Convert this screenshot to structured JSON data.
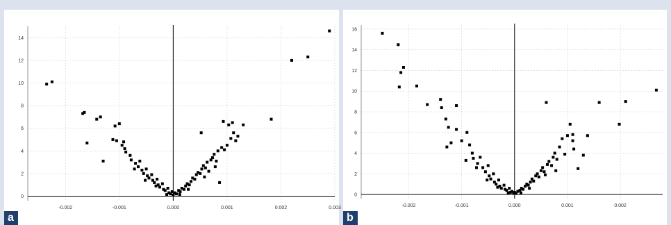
{
  "panels": [
    {
      "label": "a"
    },
    {
      "label": "b"
    }
  ],
  "colors": {
    "background": "#dce3ef",
    "panel": "#ffffff",
    "label_bg": "#1f3f6d",
    "point": "#000000"
  },
  "chart_data": [
    {
      "type": "scatter",
      "title": "",
      "xlabel": "",
      "ylabel": "",
      "xlim": [
        -0.0027,
        0.003
      ],
      "ylim": [
        -0.4,
        15
      ],
      "grid": true,
      "xticks": [
        -0.002,
        -0.001,
        0.0,
        0.001,
        0.002,
        0.003
      ],
      "xtick_labels": [
        "-0.002",
        "-0.001",
        "0.000",
        "0.001",
        "0.002",
        "0.003"
      ],
      "yticks": [
        0,
        2,
        4,
        6,
        8,
        10,
        12,
        14
      ],
      "ytick_labels": [
        "0",
        "2",
        "4",
        "6",
        "8",
        "10",
        "12",
        "14"
      ],
      "points": [
        [
          -0.00235,
          9.9
        ],
        [
          -0.00225,
          10.1
        ],
        [
          -0.00168,
          7.3
        ],
        [
          -0.00165,
          7.4
        ],
        [
          -0.00142,
          6.8
        ],
        [
          -0.00135,
          7.0
        ],
        [
          -0.0016,
          4.7
        ],
        [
          -0.0013,
          3.1
        ],
        [
          -0.00108,
          6.2
        ],
        [
          -0.001,
          6.4
        ],
        [
          -0.00112,
          5.0
        ],
        [
          -0.00105,
          4.9
        ],
        [
          -0.00095,
          4.5
        ],
        [
          -0.0009,
          4.2
        ],
        [
          -0.00088,
          3.9
        ],
        [
          -0.0008,
          3.6
        ],
        [
          -0.00078,
          3.2
        ],
        [
          -0.0007,
          2.9
        ],
        [
          -0.00065,
          2.6
        ],
        [
          -0.00062,
          3.1
        ],
        [
          -0.00058,
          2.3
        ],
        [
          -0.00055,
          2.0
        ],
        [
          -0.0005,
          2.4
        ],
        [
          -0.00048,
          1.8
        ],
        [
          -0.00045,
          1.6
        ],
        [
          -0.0004,
          1.9
        ],
        [
          -0.00038,
          1.4
        ],
        [
          -0.00035,
          1.2
        ],
        [
          -0.0003,
          1.5
        ],
        [
          -0.00028,
          1.0
        ],
        [
          -0.00025,
          0.8
        ],
        [
          -0.0002,
          1.1
        ],
        [
          -0.00018,
          0.6
        ],
        [
          -0.00015,
          0.5
        ],
        [
          -0.0001,
          0.7
        ],
        [
          -8e-05,
          0.3
        ],
        [
          -5e-05,
          0.2
        ],
        [
          -2e-05,
          0.4
        ],
        [
          0.0,
          0.1
        ],
        [
          3e-05,
          0.3
        ],
        [
          6e-05,
          0.2
        ],
        [
          0.0001,
          0.5
        ],
        [
          0.00013,
          0.4
        ],
        [
          0.00016,
          0.7
        ],
        [
          0.0002,
          0.6
        ],
        [
          0.00023,
          0.9
        ],
        [
          0.00026,
          1.1
        ],
        [
          0.0003,
          1.0
        ],
        [
          0.00033,
          1.3
        ],
        [
          0.00036,
          1.6
        ],
        [
          0.0004,
          1.5
        ],
        [
          0.00043,
          1.9
        ],
        [
          0.00046,
          2.1
        ],
        [
          0.0005,
          2.0
        ],
        [
          0.00053,
          2.4
        ],
        [
          0.00056,
          2.7
        ],
        [
          0.0006,
          2.5
        ],
        [
          0.00063,
          3.0
        ],
        [
          0.00066,
          2.2
        ],
        [
          0.0007,
          3.2
        ],
        [
          0.00073,
          3.4
        ],
        [
          0.00076,
          3.7
        ],
        [
          0.0008,
          3.1
        ],
        [
          0.00083,
          4.0
        ],
        [
          0.00086,
          1.2
        ],
        [
          0.0009,
          4.3
        ],
        [
          0.00093,
          6.6
        ],
        [
          0.00095,
          4.1
        ],
        [
          0.001,
          4.5
        ],
        [
          0.00103,
          6.3
        ],
        [
          0.00107,
          5.1
        ],
        [
          0.0011,
          6.5
        ],
        [
          0.00112,
          5.6
        ],
        [
          0.00116,
          4.9
        ],
        [
          0.0012,
          5.3
        ],
        [
          0.0013,
          6.3
        ],
        [
          0.00182,
          6.8
        ],
        [
          0.0022,
          12.0
        ],
        [
          0.0025,
          12.3
        ],
        [
          0.0029,
          14.6
        ],
        [
          0.00052,
          5.6
        ],
        [
          -0.00092,
          4.8
        ],
        [
          -0.00072,
          2.4
        ],
        [
          -0.00052,
          1.4
        ],
        [
          0.00058,
          1.7
        ],
        [
          0.00078,
          2.6
        ],
        [
          -0.00032,
          0.9
        ],
        [
          0.00028,
          0.6
        ],
        [
          -0.00012,
          0.15
        ],
        [
          0.00012,
          0.15
        ]
      ]
    },
    {
      "type": "scatter",
      "title": "",
      "xlabel": "",
      "ylabel": "",
      "xlim": [
        -0.0029,
        0.0028
      ],
      "ylim": [
        -0.4,
        16.4
      ],
      "grid": true,
      "xticks": [
        -0.002,
        -0.001,
        0.0,
        0.001,
        0.002
      ],
      "xtick_labels": [
        "-0.002",
        "-0.001",
        "0.000",
        "0.001",
        "0.002"
      ],
      "yticks": [
        0,
        2,
        4,
        6,
        8,
        10,
        12,
        14,
        16
      ],
      "ytick_labels": [
        "0",
        "2",
        "4",
        "6",
        "8",
        "10",
        "12",
        "14",
        "16"
      ],
      "points": [
        [
          -0.0025,
          15.6
        ],
        [
          -0.0022,
          14.5
        ],
        [
          -0.00215,
          11.8
        ],
        [
          -0.0021,
          12.3
        ],
        [
          -0.00218,
          10.4
        ],
        [
          -0.00185,
          10.5
        ],
        [
          -0.00165,
          8.7
        ],
        [
          -0.0014,
          9.2
        ],
        [
          -0.00138,
          8.4
        ],
        [
          -0.0011,
          8.6
        ],
        [
          -0.0013,
          7.3
        ],
        [
          -0.00125,
          6.5
        ],
        [
          -0.0012,
          5.0
        ],
        [
          -0.00128,
          4.6
        ],
        [
          -0.0011,
          6.3
        ],
        [
          -0.001,
          5.2
        ],
        [
          -0.0009,
          6.0
        ],
        [
          -0.00085,
          4.8
        ],
        [
          -0.0008,
          4.0
        ],
        [
          -0.00078,
          3.5
        ],
        [
          -0.0007,
          3.0
        ],
        [
          -0.00065,
          3.6
        ],
        [
          -0.0006,
          2.6
        ],
        [
          -0.00055,
          2.2
        ],
        [
          -0.0005,
          2.8
        ],
        [
          -0.00048,
          1.8
        ],
        [
          -0.00045,
          1.5
        ],
        [
          -0.0004,
          2.0
        ],
        [
          -0.00038,
          1.2
        ],
        [
          -0.00035,
          1.0
        ],
        [
          -0.0003,
          1.4
        ],
        [
          -0.00028,
          0.8
        ],
        [
          -0.00025,
          0.6
        ],
        [
          -0.0002,
          0.9
        ],
        [
          -0.00018,
          0.5
        ],
        [
          -0.00015,
          0.4
        ],
        [
          -0.0001,
          0.6
        ],
        [
          -8e-05,
          0.2
        ],
        [
          -5e-05,
          0.3
        ],
        [
          -2e-05,
          0.1
        ],
        [
          0.0,
          0.2
        ],
        [
          3e-05,
          0.1
        ],
        [
          6e-05,
          0.3
        ],
        [
          0.0001,
          0.4
        ],
        [
          0.00013,
          0.6
        ],
        [
          0.00016,
          0.5
        ],
        [
          0.0002,
          0.8
        ],
        [
          0.00023,
          1.0
        ],
        [
          0.00026,
          0.9
        ],
        [
          0.0003,
          1.2
        ],
        [
          0.00033,
          1.5
        ],
        [
          0.00036,
          1.3
        ],
        [
          0.0004,
          1.8
        ],
        [
          0.00043,
          2.0
        ],
        [
          0.00046,
          1.7
        ],
        [
          0.0005,
          2.3
        ],
        [
          0.00053,
          2.6
        ],
        [
          0.00056,
          2.2
        ],
        [
          0.0006,
          8.9
        ],
        [
          0.00062,
          2.9
        ],
        [
          0.00065,
          3.2
        ],
        [
          0.0007,
          2.8
        ],
        [
          0.00073,
          3.6
        ],
        [
          0.00076,
          4.0
        ],
        [
          0.0008,
          3.4
        ],
        [
          0.00085,
          4.6
        ],
        [
          0.0009,
          5.4
        ],
        [
          0.00095,
          3.9
        ],
        [
          0.001,
          5.7
        ],
        [
          0.00105,
          6.8
        ],
        [
          0.0011,
          5.8
        ],
        [
          0.00112,
          4.4
        ],
        [
          0.0012,
          2.5
        ],
        [
          0.0013,
          3.8
        ],
        [
          0.00138,
          5.7
        ],
        [
          0.0016,
          8.9
        ],
        [
          0.00198,
          6.8
        ],
        [
          0.0021,
          9.0
        ],
        [
          0.00268,
          10.1
        ],
        [
          0.0011,
          5.2
        ],
        [
          -0.00092,
          3.3
        ],
        [
          -0.00072,
          2.6
        ],
        [
          -0.00052,
          1.4
        ],
        [
          0.00058,
          1.9
        ],
        [
          0.00078,
          2.3
        ],
        [
          -0.00032,
          0.7
        ],
        [
          0.00028,
          0.6
        ],
        [
          -0.00012,
          0.15
        ],
        [
          0.00012,
          0.15
        ]
      ]
    }
  ]
}
